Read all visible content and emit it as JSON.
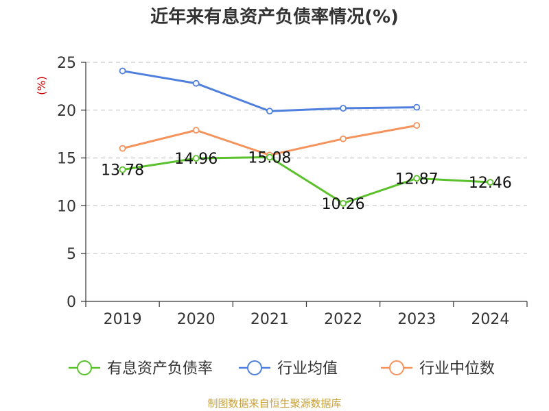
{
  "chart_data": {
    "type": "line",
    "title": "近年来有息资产负债率情况(%)",
    "ylabel": "(%)",
    "xlabel": "",
    "categories": [
      "2019",
      "2020",
      "2021",
      "2022",
      "2023",
      "2024"
    ],
    "ylim": [
      0,
      25
    ],
    "yticks": [
      0,
      5,
      10,
      15,
      20,
      25
    ],
    "grid": true,
    "legend_position": "bottom",
    "series": [
      {
        "name": "有息资产负债率",
        "color": "#5ac12c",
        "values": [
          13.78,
          14.96,
          15.08,
          10.26,
          12.87,
          12.46
        ],
        "show_labels": true
      },
      {
        "name": "行业均值",
        "color": "#4f7fdc",
        "values": [
          24.1,
          22.8,
          19.9,
          20.2,
          20.3,
          null
        ],
        "show_labels": false
      },
      {
        "name": "行业中位数",
        "color": "#f6935c",
        "values": [
          16.0,
          17.9,
          15.3,
          17.0,
          18.4,
          null
        ],
        "show_labels": false
      }
    ]
  },
  "source_note": "制图数据来自恒生聚源数据库"
}
